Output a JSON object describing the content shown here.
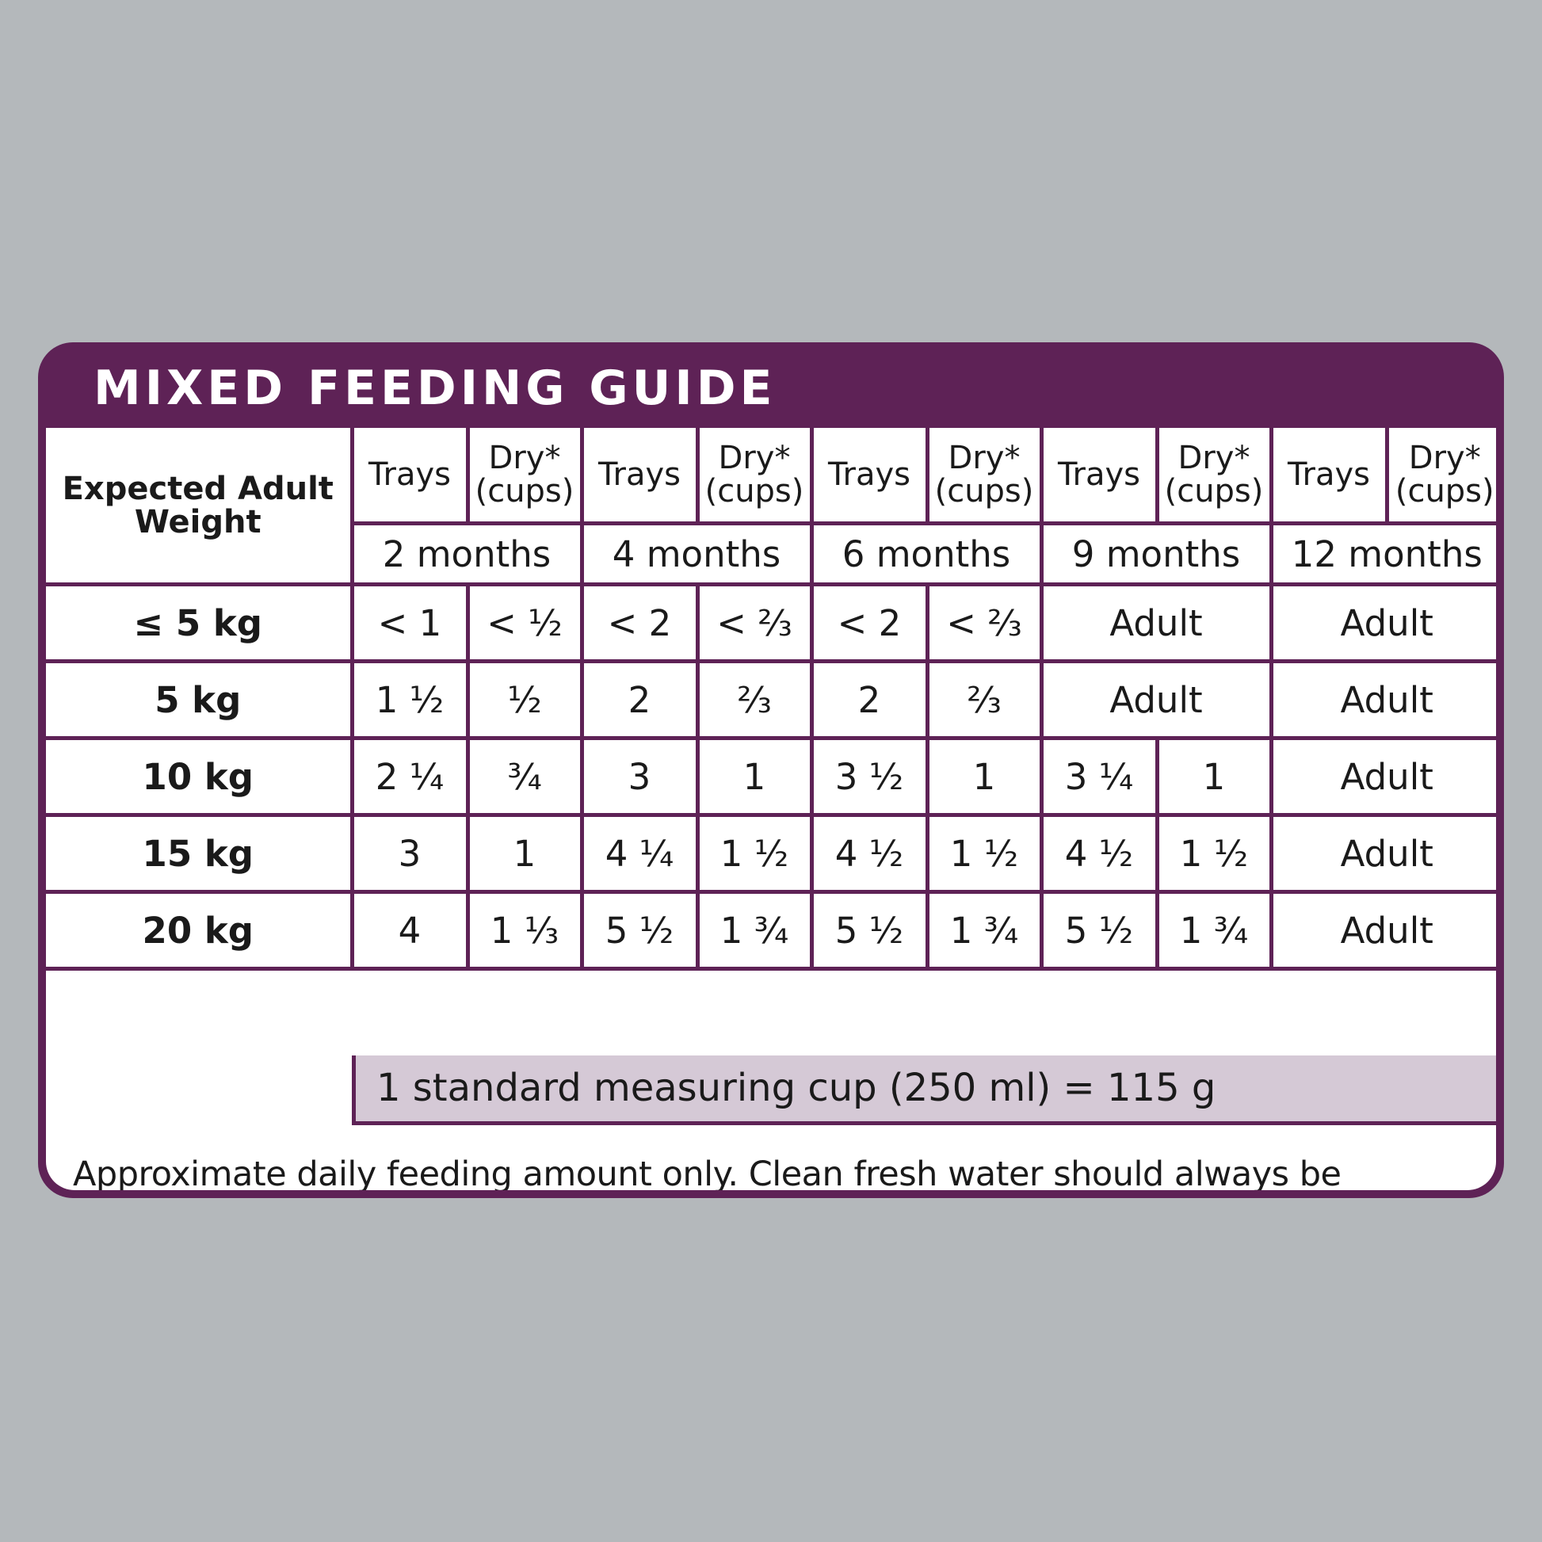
{
  "title": "MIXED FEEDING GUIDE",
  "table": {
    "weight_header": "Expected Adult Weight",
    "sub_headers": [
      "Trays",
      "Dry* (cups)",
      "Trays",
      "Dry* (cups)",
      "Trays",
      "Dry* (cups)",
      "Trays",
      "Dry* (cups)",
      "Trays",
      "Dry* (cups)"
    ],
    "ages": [
      "2 months",
      "4 months",
      "6 months",
      "9 months",
      "12 months"
    ],
    "rows": [
      {
        "weight": "≤ 5 kg",
        "cells": [
          "< 1",
          "< ½",
          "< 2",
          "< ⅔",
          "< 2",
          "< ⅔",
          "Adult",
          "Adult"
        ]
      },
      {
        "weight": "5 kg",
        "cells": [
          "1 ½",
          "½",
          "2",
          "⅔",
          "2",
          "⅔",
          "Adult",
          "Adult"
        ]
      },
      {
        "weight": "10 kg",
        "cells": [
          "2 ¼",
          "¾",
          "3",
          "1",
          "3 ½",
          "1",
          "3 ¼",
          "1",
          "Adult"
        ]
      },
      {
        "weight": "15 kg",
        "cells": [
          "3",
          "1",
          "4 ¼",
          "1 ½",
          "4 ½",
          "1 ½",
          "4 ½",
          "1 ½",
          "Adult"
        ]
      },
      {
        "weight": "20 kg",
        "cells": [
          "4",
          "1 ⅓",
          "5 ½",
          "1 ¾",
          "5 ½",
          "1 ¾",
          "5 ½",
          "1 ¾",
          "Adult"
        ]
      }
    ]
  },
  "cup_note": "1 standard measuring cup (250 ml) = 115 g",
  "disclaimer": "Approximate daily feeding amount only. Clean fresh water should always be available\nfor your puppy.  *Dry feeding based on OPTIMUM™ Dry Puppy with Chicken.",
  "colors": {
    "accent": "#5e2256",
    "note_bg": "#d5c9d6",
    "background": "#b4b8bb"
  }
}
